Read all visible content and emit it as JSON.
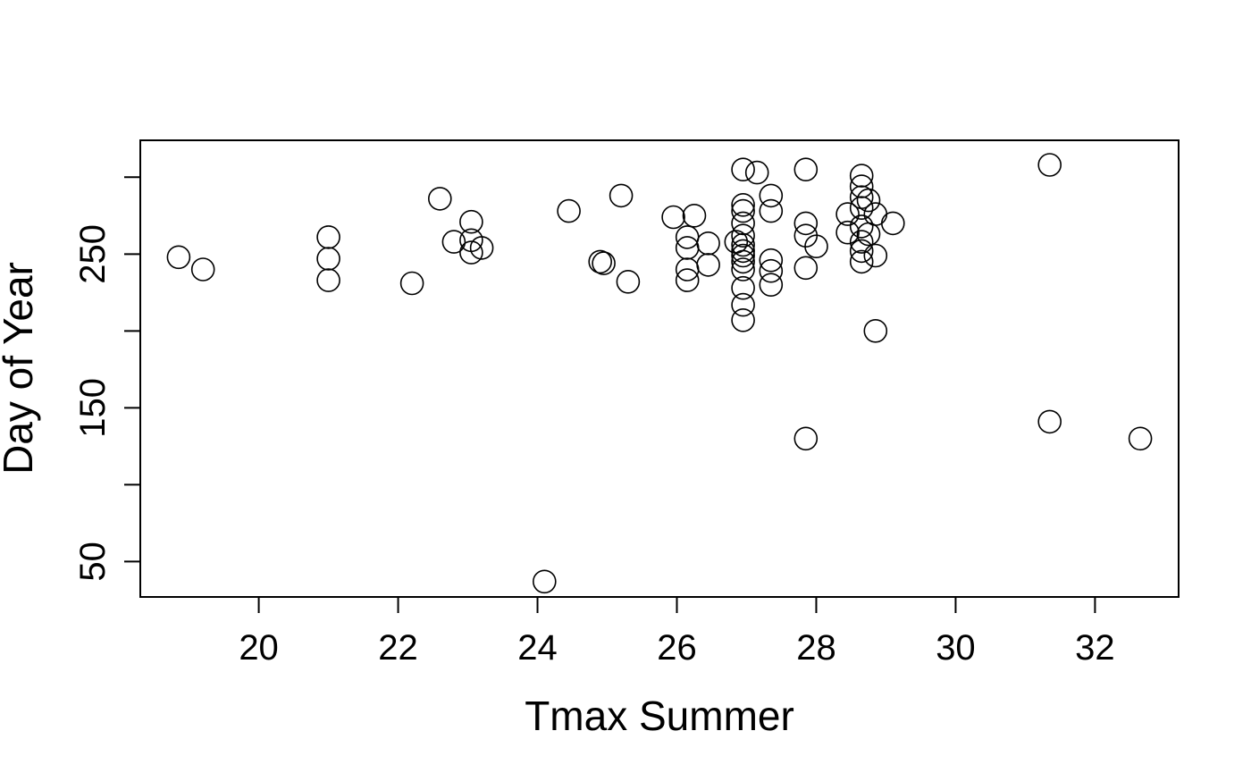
{
  "chart_data": {
    "type": "scatter",
    "title": "",
    "xlabel": "Tmax Summer",
    "ylabel": "Day of Year",
    "xlim": [
      18.3,
      33.2
    ],
    "ylim": [
      27,
      324
    ],
    "x_ticks": [
      20,
      22,
      24,
      26,
      28,
      30,
      32
    ],
    "y_ticks": [
      50,
      100,
      150,
      200,
      250,
      300
    ],
    "y_tick_labels": [
      "50",
      "",
      "150",
      "",
      "250",
      ""
    ],
    "grid": false,
    "legend": "none",
    "marker": "open-circle",
    "series": [
      {
        "points": [
          [
            18.85,
            248
          ],
          [
            19.2,
            240
          ],
          [
            21.0,
            261
          ],
          [
            21.0,
            247
          ],
          [
            21.0,
            233
          ],
          [
            22.2,
            231
          ],
          [
            22.6,
            286
          ],
          [
            22.8,
            258
          ],
          [
            23.05,
            271
          ],
          [
            23.05,
            259
          ],
          [
            23.05,
            251
          ],
          [
            23.2,
            254
          ],
          [
            24.1,
            37
          ],
          [
            24.45,
            278
          ],
          [
            24.9,
            245
          ],
          [
            24.95,
            244
          ],
          [
            25.2,
            288
          ],
          [
            25.3,
            232
          ],
          [
            25.95,
            274
          ],
          [
            26.15,
            261
          ],
          [
            26.15,
            254
          ],
          [
            26.15,
            240
          ],
          [
            26.15,
            233
          ],
          [
            26.25,
            275
          ],
          [
            26.45,
            257
          ],
          [
            26.45,
            243
          ],
          [
            26.85,
            258
          ],
          [
            26.95,
            305
          ],
          [
            26.95,
            282
          ],
          [
            26.95,
            278
          ],
          [
            26.95,
            270
          ],
          [
            26.95,
            262
          ],
          [
            26.95,
            256
          ],
          [
            26.95,
            252
          ],
          [
            26.95,
            249
          ],
          [
            26.95,
            245
          ],
          [
            26.95,
            240
          ],
          [
            26.95,
            228
          ],
          [
            26.95,
            217
          ],
          [
            26.95,
            207
          ],
          [
            27.15,
            303
          ],
          [
            27.35,
            288
          ],
          [
            27.35,
            278
          ],
          [
            27.35,
            246
          ],
          [
            27.35,
            239
          ],
          [
            27.35,
            230
          ],
          [
            27.85,
            305
          ],
          [
            27.85,
            270
          ],
          [
            27.85,
            262
          ],
          [
            27.85,
            241
          ],
          [
            27.85,
            130
          ],
          [
            28.0,
            255
          ],
          [
            28.45,
            276
          ],
          [
            28.45,
            264
          ],
          [
            28.65,
            301
          ],
          [
            28.65,
            294
          ],
          [
            28.65,
            287
          ],
          [
            28.65,
            280
          ],
          [
            28.65,
            268
          ],
          [
            28.65,
            258
          ],
          [
            28.65,
            252
          ],
          [
            28.65,
            245
          ],
          [
            28.75,
            285
          ],
          [
            28.75,
            263
          ],
          [
            28.85,
            276
          ],
          [
            28.85,
            249
          ],
          [
            28.85,
            200
          ],
          [
            29.1,
            270
          ],
          [
            31.35,
            308
          ],
          [
            31.35,
            141
          ],
          [
            32.65,
            130
          ]
        ]
      }
    ]
  }
}
